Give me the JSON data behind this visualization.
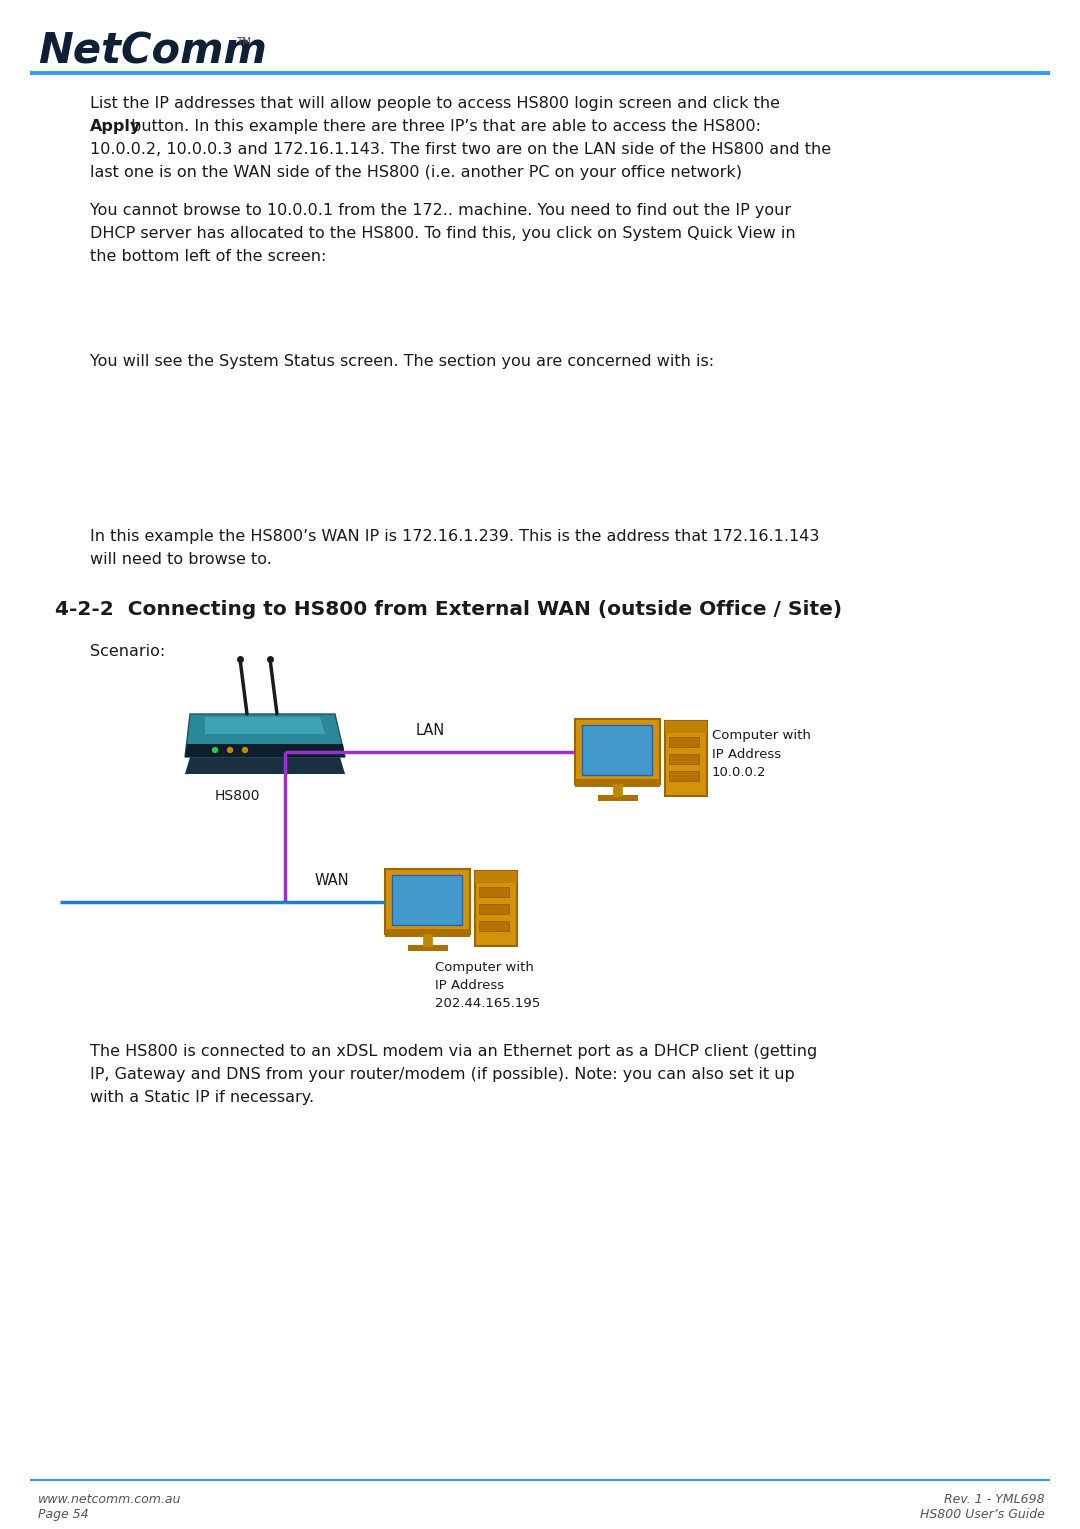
{
  "bg_color": "#ffffff",
  "header_line_color": "#3399ff",
  "text_color": "#1a1a1a",
  "logo_color": "#0d2035",
  "section_title": "4-2-2  Connecting to HS800 from External WAN (outside Office / Site)",
  "scenario_label": "Scenario:",
  "hs800_label": "HS800",
  "lan_label": "LAN",
  "wan_label": "WAN",
  "computer1_label": "Computer with\nIP Address\n10.0.0.2",
  "computer2_label": "Computer with\nIP Address\n202.44.165.195",
  "footer_left1": "www.netcomm.com.au",
  "footer_left2": "Page 54",
  "footer_right1": "Rev. 1 - YML698",
  "footer_right2": "HS800 User’s Guide",
  "footer_line_color": "#3399ff",
  "line1": "List the IP addresses that will allow people to access HS800 login screen and click the",
  "line2a": "Apply",
  "line2b": " button. In this example there are three IP’s that are able to access the HS800:",
  "line3": "10.0.0.2, 10.0.0.3 and 172.16.1.143. The first two are on the LAN side of the HS800 and the",
  "line4": "last one is on the WAN side of the HS800 (i.e. another PC on your office network)",
  "line5": "You cannot browse to 10.0.0.1 from the 172.. machine. You need to find out the IP your",
  "line6": "DHCP server has allocated to the HS800. To find this, you click on System Quick View in",
  "line7": "the bottom left of the screen:",
  "line8": "You will see the System Status screen. The section you are concerned with is:",
  "line9": "In this example the HS800’s WAN IP is 172.16.1.239. This is the address that 172.16.1.143",
  "line10": "will need to browse to.",
  "line11": "The HS800 is connected to an xDSL modem via an Ethernet port as a DHCP client (getting",
  "line12": "IP, Gateway and DNS from your router/modem (if possible). Note: you can also set it up",
  "line13": "with a Static IP if necessary.",
  "lan_line_color": "#9933cc",
  "wan_line_color": "#1e7fcc",
  "router_body_color": "#3a9ab0",
  "router_dark_color": "#1a3a45",
  "router_light_color": "#5abbd0",
  "comp_gold_color": "#d4920a",
  "comp_dark_gold": "#8a5500",
  "comp_screen_color": "#3399cc",
  "comp_dark_color": "#2255aa"
}
